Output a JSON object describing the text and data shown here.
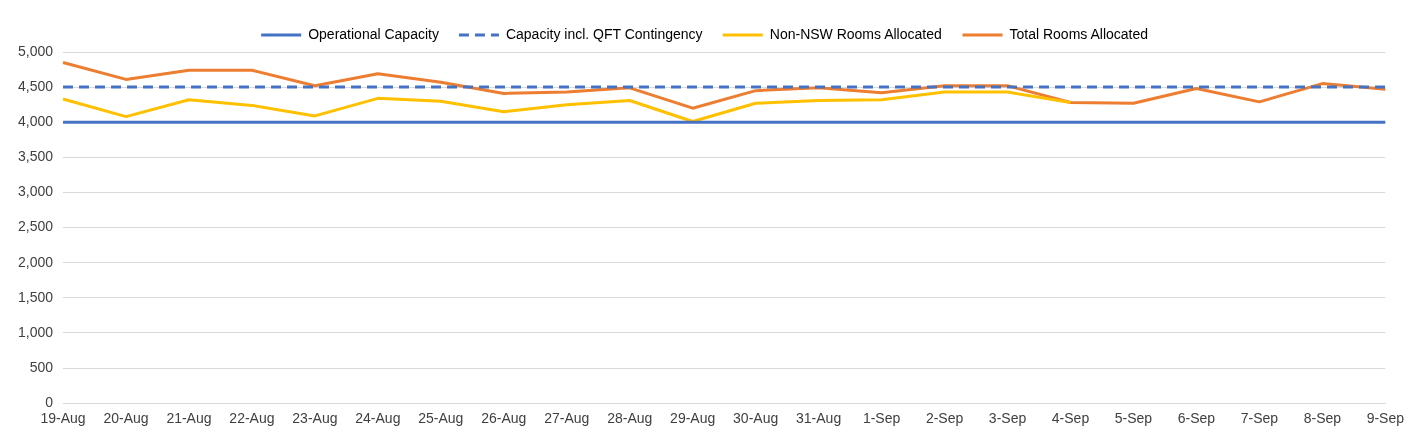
{
  "chart_data": {
    "type": "line",
    "categories": [
      "19-Aug",
      "20-Aug",
      "21-Aug",
      "22-Aug",
      "23-Aug",
      "24-Aug",
      "25-Aug",
      "26-Aug",
      "27-Aug",
      "28-Aug",
      "29-Aug",
      "30-Aug",
      "31-Aug",
      "1-Sep",
      "2-Sep",
      "3-Sep",
      "4-Sep",
      "5-Sep",
      "6-Sep",
      "7-Sep",
      "8-Sep",
      "9-Sep"
    ],
    "series": [
      {
        "name": "Operational Capacity",
        "color": "#4472c4",
        "line_style": "solid",
        "values": [
          4000,
          4000,
          4000,
          4000,
          4000,
          4000,
          4000,
          4000,
          4000,
          4000,
          4000,
          4000,
          4000,
          4000,
          4000,
          4000,
          4000,
          4000,
          4000,
          4000,
          4000,
          4000
        ]
      },
      {
        "name": "Capacity incl. QFT Contingency",
        "color": "#4472c4",
        "line_style": "dashed",
        "values": [
          4500,
          4500,
          4500,
          4500,
          4500,
          4500,
          4500,
          4500,
          4500,
          4500,
          4500,
          4500,
          4500,
          4500,
          4500,
          4500,
          4500,
          4500,
          4500,
          4500,
          4500,
          4500
        ]
      },
      {
        "name": "Non-NSW Rooms Allocated",
        "color": "#ffc000",
        "line_style": "solid",
        "values": [
          4330,
          4080,
          4320,
          4240,
          4090,
          4340,
          4300,
          4150,
          4250,
          4310,
          4010,
          4270,
          4310,
          4320,
          4430,
          4430,
          4280,
          null,
          null,
          null,
          null,
          null
        ]
      },
      {
        "name": "Total Rooms Allocated",
        "color": "#ed7d31",
        "line_style": "solid",
        "values": [
          4850,
          4610,
          4740,
          4740,
          4520,
          4690,
          4570,
          4410,
          4430,
          4490,
          4200,
          4450,
          4490,
          4420,
          4520,
          4520,
          4280,
          4270,
          4480,
          4290,
          4550,
          4470
        ]
      }
    ],
    "ylim": [
      0,
      5000
    ],
    "yticks": [
      0,
      500,
      {
        "value": 1000,
        "label": "1,000"
      },
      {
        "value": 1500,
        "label": "1,500"
      },
      {
        "value": 2000,
        "label": "2,000"
      },
      {
        "value": 2500,
        "label": "2,500"
      },
      {
        "value": 3000,
        "label": "3,000"
      },
      {
        "value": 3500,
        "label": "3,500"
      },
      {
        "value": 4000,
        "label": "4,000"
      },
      {
        "value": 4500,
        "label": "4,500"
      },
      {
        "value": 5000,
        "label": "5,000"
      }
    ],
    "grid": "y",
    "legend": "top",
    "marker": "none"
  }
}
